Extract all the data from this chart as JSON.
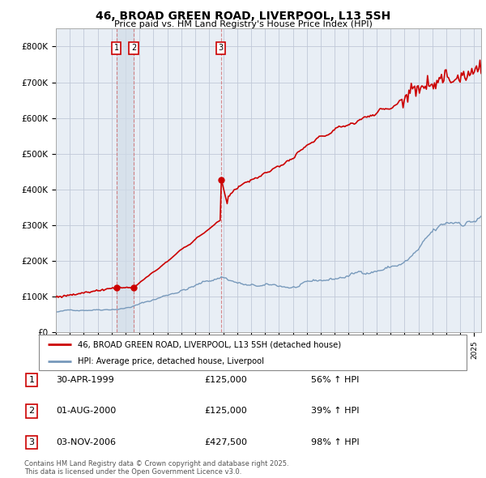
{
  "title": "46, BROAD GREEN ROAD, LIVERPOOL, L13 5SH",
  "subtitle": "Price paid vs. HM Land Registry's House Price Index (HPI)",
  "background_color": "#ffffff",
  "plot_bg_color": "#e8eef5",
  "grid_color": "#c0c8d8",
  "red_color": "#cc0000",
  "blue_color": "#7799bb",
  "shade_color": "#d0dce8",
  "ylim": [
    0,
    850000
  ],
  "yticks": [
    0,
    100000,
    200000,
    300000,
    400000,
    500000,
    600000,
    700000,
    800000
  ],
  "ytick_labels": [
    "£0",
    "£100K",
    "£200K",
    "£300K",
    "£400K",
    "£500K",
    "£600K",
    "£700K",
    "£800K"
  ],
  "xlim": [
    1995.0,
    2025.5
  ],
  "transactions": [
    {
      "num": 1,
      "date_x": 1999.33,
      "price": 125000,
      "label": "30-APR-1999",
      "price_label": "£125,000",
      "hpi_label": "56% ↑ HPI"
    },
    {
      "num": 2,
      "date_x": 2000.58,
      "price": 125000,
      "label": "01-AUG-2000",
      "price_label": "£125,000",
      "hpi_label": "39% ↑ HPI"
    },
    {
      "num": 3,
      "date_x": 2006.83,
      "price": 427500,
      "label": "03-NOV-2006",
      "price_label": "£427,500",
      "hpi_label": "98% ↑ HPI"
    }
  ],
  "legend_entries": [
    {
      "label": "46, BROAD GREEN ROAD, LIVERPOOL, L13 5SH (detached house)",
      "color": "#cc0000"
    },
    {
      "label": "HPI: Average price, detached house, Liverpool",
      "color": "#7799bb"
    }
  ],
  "footer": "Contains HM Land Registry data © Crown copyright and database right 2025.\nThis data is licensed under the Open Government Licence v3.0."
}
